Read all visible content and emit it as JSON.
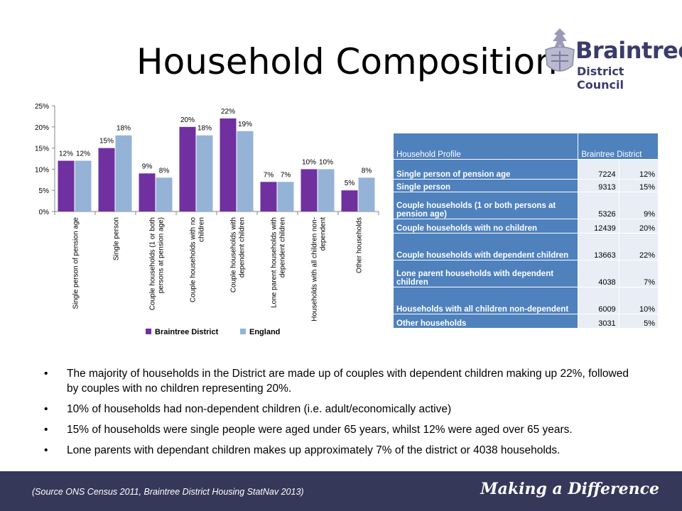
{
  "slide": {
    "title": "Household Composition",
    "logo": {
      "name": "Braintree",
      "sub": "District Council"
    },
    "bullets": [
      "The majority of households in the District are made up of couples with dependent children making up 22%, followed by couples with no children representing 20%.",
      "10% of households had non-dependent children (i.e. adult/economically active)",
      "15% of households were single people were aged under 65 years, whilst 12% were aged over 65 years.",
      "Lone parents with dependant children makes up approximately 7% of the district or 4038 households."
    ],
    "footer": {
      "source": "(Source ONS Census 2011, Braintree District Housing StatNav 2013)",
      "tagline": "Making a Difference"
    }
  },
  "table": {
    "headers": [
      "Household Profile",
      "Braintree District"
    ],
    "rows": [
      {
        "name": "Single person of pension age",
        "count": "7224",
        "pct": "12%"
      },
      {
        "name": "Single person",
        "count": "9313",
        "pct": "15%"
      },
      {
        "name": "Couple households (1 or both persons at pension age)",
        "count": "5326",
        "pct": "9%"
      },
      {
        "name": "Couple households with no children",
        "count": "12439",
        "pct": "20%"
      },
      {
        "name": "Couple households with dependent children",
        "count": "13663",
        "pct": "22%"
      },
      {
        "name": "Lone parent households with dependent children",
        "count": "4038",
        "pct": "7%"
      },
      {
        "name": "Households with all children non-dependent",
        "count": "6009",
        "pct": "10%"
      },
      {
        "name": "Other households",
        "count": "3031",
        "pct": "5%"
      }
    ]
  },
  "chart_data": {
    "type": "bar",
    "categories": [
      "Single person of pension age",
      "Single person",
      "Couple households (1 or both persons at pension age)",
      "Couple households with no children",
      "Couple households with dependent children",
      "Lone parent households with dependent children",
      "Households with all children non-dependent",
      "Other households"
    ],
    "category_lines": [
      [
        "Single person of pension age"
      ],
      [
        "Single person"
      ],
      [
        "Couple households (1 or both",
        "persons at pension age)"
      ],
      [
        "Couple households with no",
        "children"
      ],
      [
        "Couple households with",
        "dependent children"
      ],
      [
        "Lone parent households with",
        "dependent children"
      ],
      [
        "Households with all children non-",
        "dependent"
      ],
      [
        "Other households"
      ]
    ],
    "series": [
      {
        "name": "Braintree District",
        "color": "#7030a0",
        "values": [
          12,
          15,
          9,
          20,
          22,
          7,
          10,
          5
        ],
        "labels": [
          "12%",
          "15%",
          "9%",
          "20%",
          "22%",
          "7%",
          "10%",
          "5%"
        ]
      },
      {
        "name": "England",
        "color": "#95b3d7",
        "values": [
          12,
          18,
          8,
          18,
          19,
          7,
          10,
          8
        ],
        "labels": [
          "12%",
          "18%",
          "8%",
          "18%",
          "19%",
          "7%",
          "10%",
          "8%"
        ]
      }
    ],
    "ylim": [
      0,
      25
    ],
    "yticks": [
      "0%",
      "5%",
      "10%",
      "15%",
      "20%",
      "25%"
    ],
    "legend_position": "bottom",
    "grid": false
  }
}
